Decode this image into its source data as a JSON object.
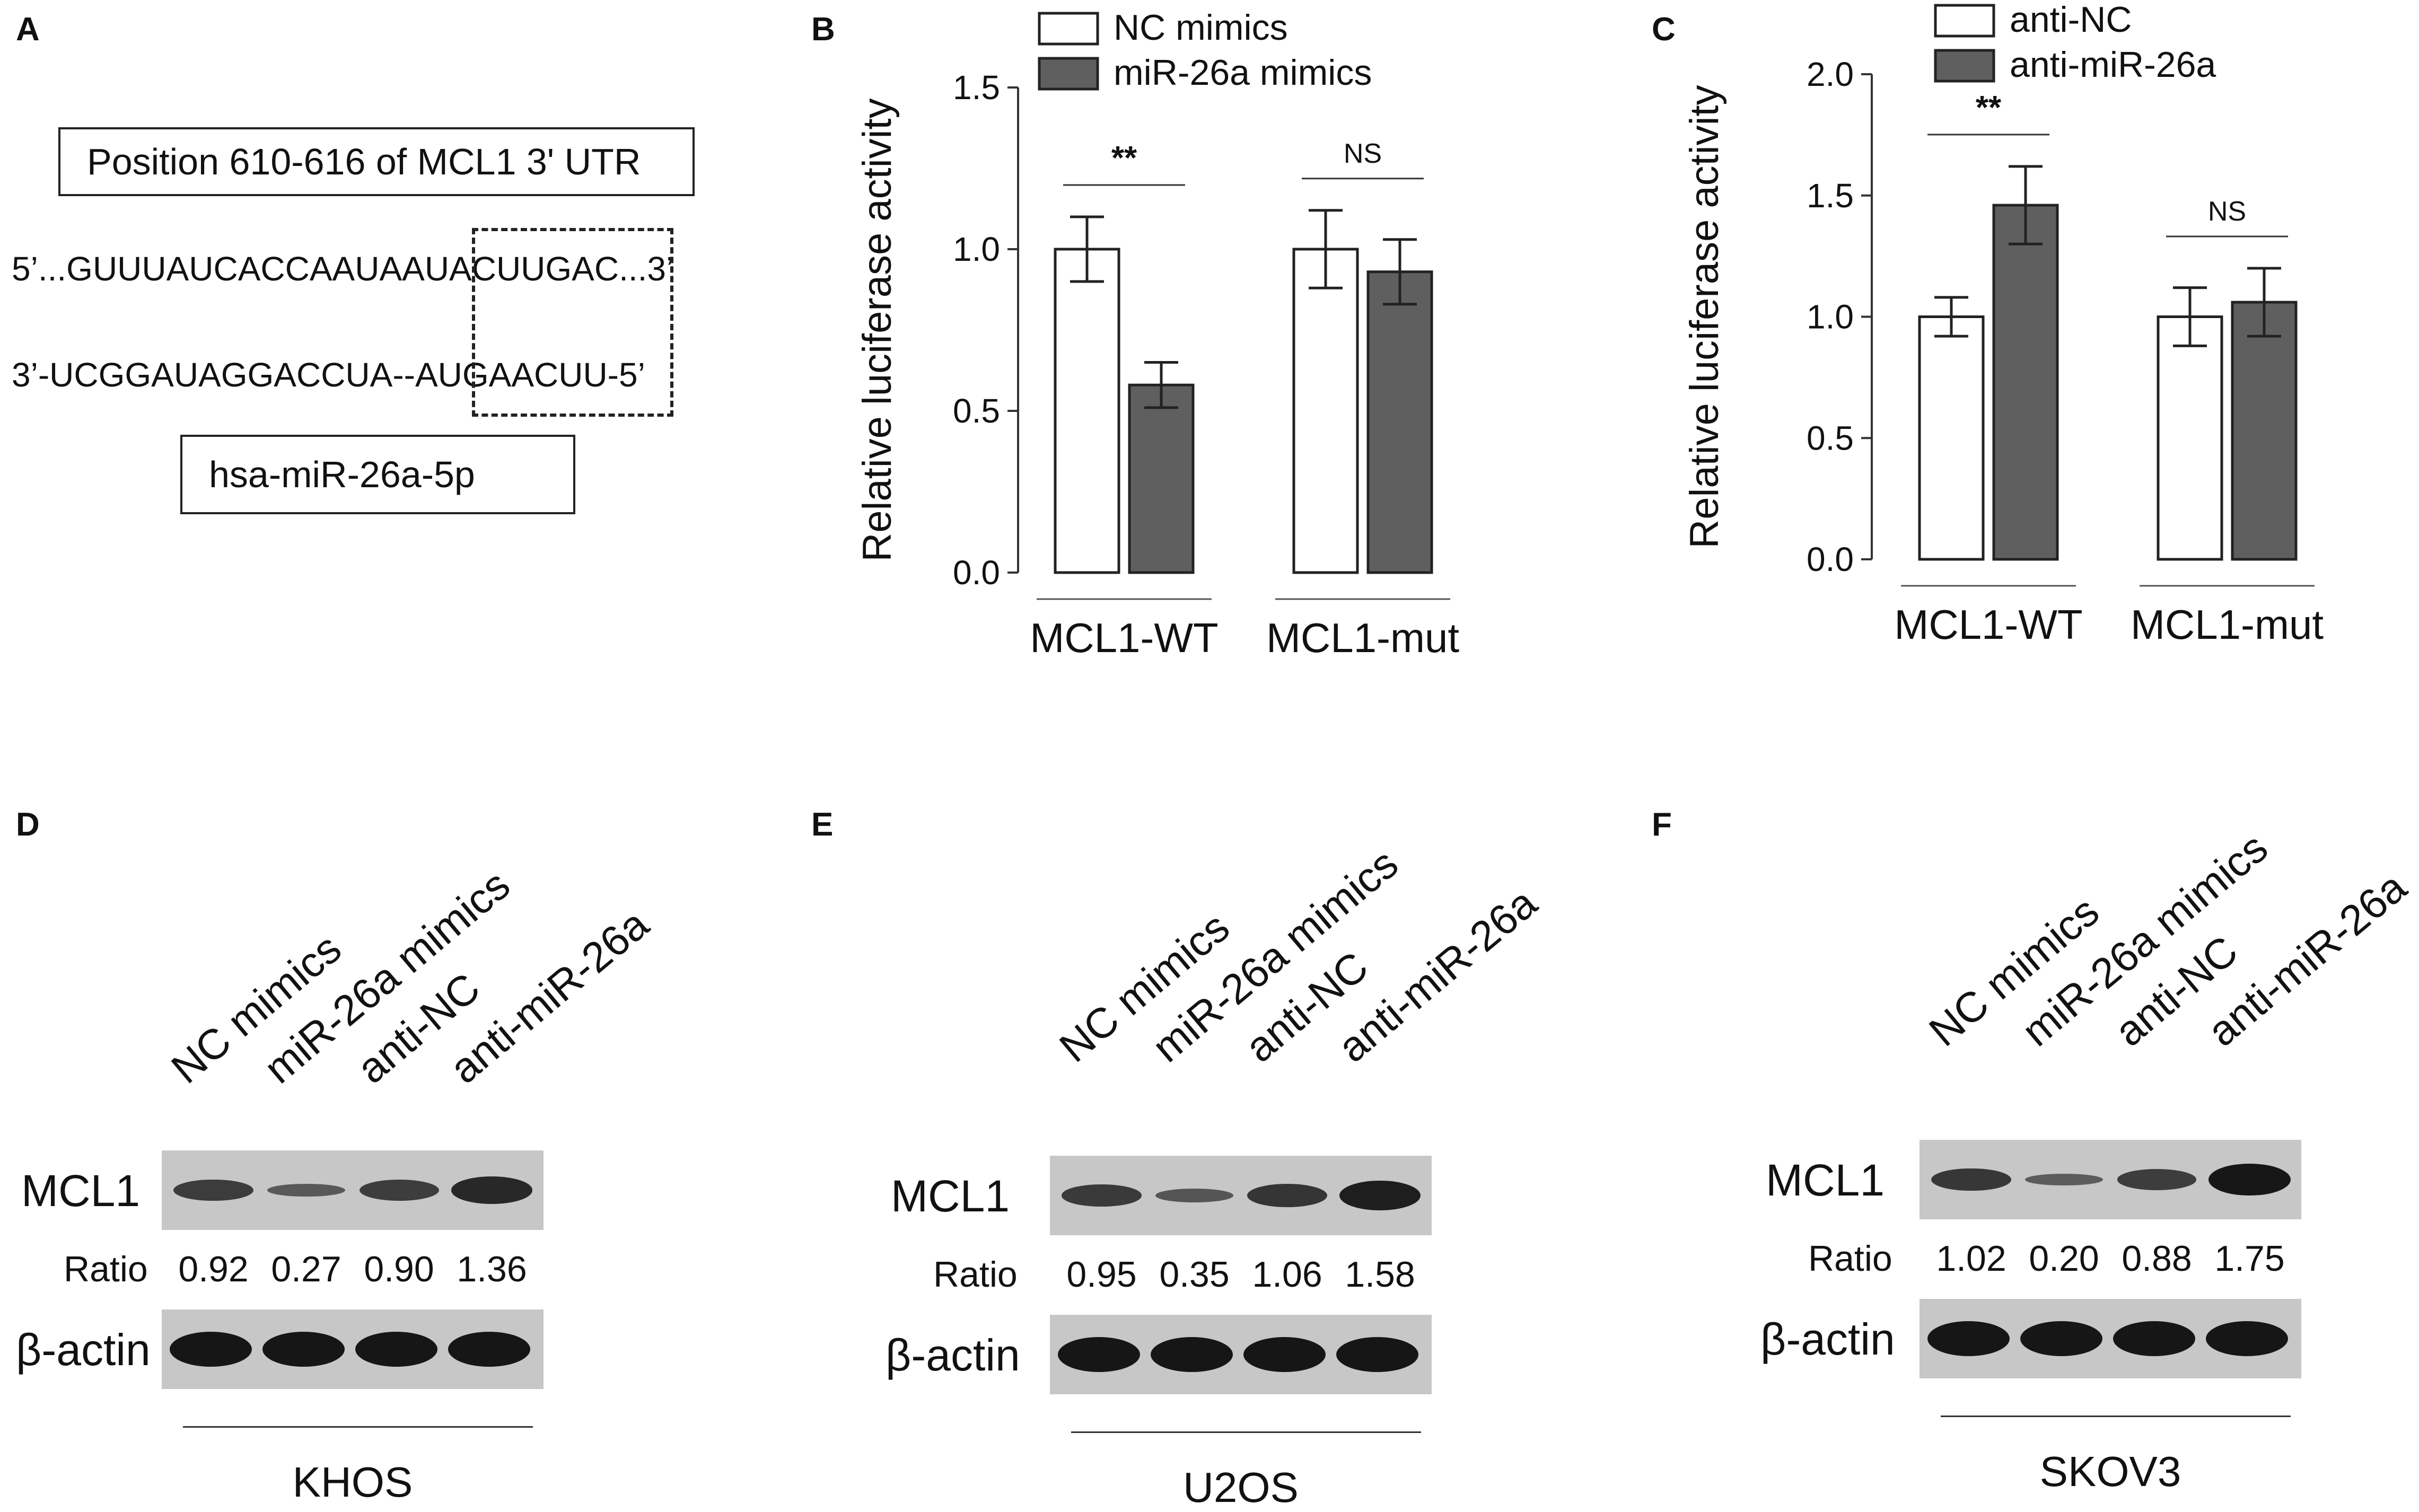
{
  "panels": {
    "A": {
      "letter": "A",
      "box_top": "Position 610-616 of MCL1 3' UTR",
      "seq_top": "5’...GUUUAUCACCAAUAAUACUUGAC...3’",
      "seq_bottom": "3’-UCGGAUAGGACCUA--AUGAACUU-5’",
      "box_bottom": "hsa-miR-26a-5p"
    },
    "B": {
      "letter": "B"
    },
    "C": {
      "letter": "C"
    },
    "D": {
      "letter": "D",
      "lanes": [
        "NC mimics",
        "miR-26a mimics",
        "anti-NC",
        "anti-miR-26a"
      ],
      "row1": "MCL1",
      "ratio_label": "Ratio",
      "ratios": [
        "0.92",
        "0.27",
        "0.90",
        "1.36"
      ],
      "row2": "β-actin",
      "cell_line": "KHOS",
      "band_intensity": [
        0.92,
        0.27,
        0.9,
        1.36
      ]
    },
    "E": {
      "letter": "E",
      "lanes": [
        "NC mimics",
        "miR-26a mimics",
        "anti-NC",
        "anti-miR-26a"
      ],
      "row1": "MCL1",
      "ratio_label": "Ratio",
      "ratios": [
        "0.95",
        "0.35",
        "1.06",
        "1.58"
      ],
      "row2": "β-actin",
      "cell_line": "U2OS",
      "band_intensity": [
        0.95,
        0.35,
        1.06,
        1.58
      ]
    },
    "F": {
      "letter": "F",
      "lanes": [
        "NC mimics",
        "miR-26a mimics",
        "anti-NC",
        "anti-miR-26a"
      ],
      "row1": "MCL1",
      "ratio_label": "Ratio",
      "ratios": [
        "1.02",
        "0.20",
        "0.88",
        "1.75"
      ],
      "row2": "β-actin",
      "cell_line": "SKOV3",
      "band_intensity": [
        1.02,
        0.2,
        0.88,
        1.75
      ]
    }
  },
  "chart_data": [
    {
      "type": "bar",
      "panel": "B",
      "categories": [
        "MCL1-WT",
        "MCL1-mut"
      ],
      "series": [
        {
          "name": "NC mimics",
          "values": [
            1.0,
            1.0
          ],
          "errors": [
            0.1,
            0.12
          ],
          "color": "#ffffff"
        },
        {
          "name": "miR-26a mimics",
          "values": [
            0.58,
            0.93
          ],
          "errors": [
            0.07,
            0.1
          ],
          "color": "#5f5f5f"
        }
      ],
      "ylabel": "Relative luciferase activity",
      "ylim": [
        0,
        1.5
      ],
      "yticks": [
        "0.0",
        "0.5",
        "1.0",
        "1.5"
      ],
      "annotations": [
        "**",
        "NS"
      ],
      "legend": "top"
    },
    {
      "type": "bar",
      "panel": "C",
      "categories": [
        "MCL1-WT",
        "MCL1-mut"
      ],
      "series": [
        {
          "name": "anti-NC",
          "values": [
            1.0,
            1.0
          ],
          "errors": [
            0.08,
            0.12
          ],
          "color": "#ffffff"
        },
        {
          "name": "anti-miR-26a",
          "values": [
            1.46,
            1.06
          ],
          "errors": [
            0.16,
            0.14
          ],
          "color": "#5f5f5f"
        }
      ],
      "ylabel": "Relative luciferase activity",
      "ylim": [
        0,
        2.0
      ],
      "yticks": [
        "0.0",
        "0.5",
        "1.0",
        "1.5",
        "2.0"
      ],
      "annotations": [
        "**",
        "NS"
      ],
      "legend": "top"
    }
  ]
}
